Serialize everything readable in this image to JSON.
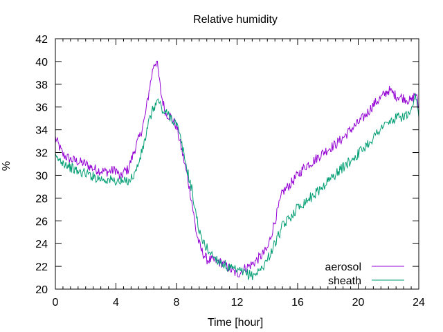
{
  "chart_data": {
    "type": "line",
    "title": "Relative humidity",
    "xlabel": "Time [hour]",
    "ylabel": "%",
    "xlim": [
      0,
      24
    ],
    "ylim": [
      20,
      42
    ],
    "xticks": [
      0,
      4,
      8,
      12,
      16,
      20,
      24
    ],
    "yticks": [
      20,
      22,
      24,
      26,
      28,
      30,
      32,
      34,
      36,
      38,
      40,
      42
    ],
    "grid": false,
    "legend_position": "bottom-right",
    "series": [
      {
        "name": "aerosol",
        "color": "#9400d3",
        "x": [
          0,
          0.5,
          1,
          1.5,
          2,
          2.5,
          3,
          3.5,
          4,
          4.3,
          4.5,
          4.8,
          5,
          5.3,
          5.6,
          5.9,
          6.2,
          6.5,
          6.7,
          7,
          7.3,
          7.6,
          8,
          8.3,
          8.7,
          9,
          9.3,
          9.6,
          10,
          10.5,
          11,
          11.5,
          12,
          12.5,
          13,
          13.5,
          14,
          14.5,
          15,
          15.5,
          16,
          16.5,
          17,
          17.5,
          18,
          18.5,
          19,
          19.5,
          20,
          20.5,
          21,
          21.5,
          22,
          22.5,
          23,
          23.5,
          23.8,
          24
        ],
        "y": [
          33.3,
          31.8,
          31.4,
          31.2,
          31.0,
          30.6,
          30.4,
          30.3,
          30.5,
          29.7,
          30.3,
          30.5,
          31.3,
          32.5,
          33.5,
          35.0,
          37.5,
          39.8,
          40.0,
          37.0,
          35.4,
          35.2,
          34.3,
          32.5,
          30.0,
          27.8,
          25.0,
          23.5,
          22.6,
          22.5,
          22.3,
          21.8,
          21.3,
          21.8,
          22.2,
          22.8,
          23.5,
          26.0,
          28.5,
          29.2,
          30.0,
          30.8,
          31.2,
          31.8,
          32.3,
          32.7,
          33.3,
          34.0,
          34.6,
          35.3,
          36.2,
          36.8,
          37.5,
          37.0,
          36.8,
          36.5,
          37.3,
          35.8
        ]
      },
      {
        "name": "sheath",
        "color": "#009e73",
        "x": [
          0,
          0.5,
          1,
          1.5,
          2,
          2.5,
          3,
          3.5,
          4,
          4.5,
          5,
          5.3,
          5.6,
          5.9,
          6.2,
          6.5,
          6.8,
          7.1,
          7.5,
          8,
          8.3,
          8.7,
          9,
          9.3,
          9.6,
          10,
          10.5,
          11,
          11.5,
          12,
          12.5,
          13,
          13.5,
          14,
          14.5,
          15,
          15.5,
          16,
          16.5,
          17,
          17.5,
          18,
          18.5,
          19,
          19.5,
          20,
          20.5,
          21,
          21.5,
          22,
          22.5,
          23,
          23.5,
          23.8,
          24
        ],
        "y": [
          31.5,
          31.2,
          30.7,
          30.3,
          30.2,
          29.9,
          29.7,
          29.6,
          29.5,
          29.4,
          29.7,
          30.3,
          31.5,
          33.0,
          34.8,
          36.0,
          36.6,
          35.6,
          35.3,
          34.5,
          33.0,
          30.5,
          28.8,
          26.5,
          24.5,
          23.6,
          22.8,
          22.3,
          21.8,
          21.6,
          21.4,
          21.2,
          21.6,
          22.6,
          24.0,
          25.5,
          26.3,
          27.2,
          27.7,
          28.2,
          28.8,
          29.5,
          30.1,
          30.7,
          31.3,
          31.9,
          32.6,
          33.3,
          34.2,
          34.6,
          35.0,
          35.2,
          35.4,
          37.0,
          35.0
        ]
      }
    ]
  }
}
